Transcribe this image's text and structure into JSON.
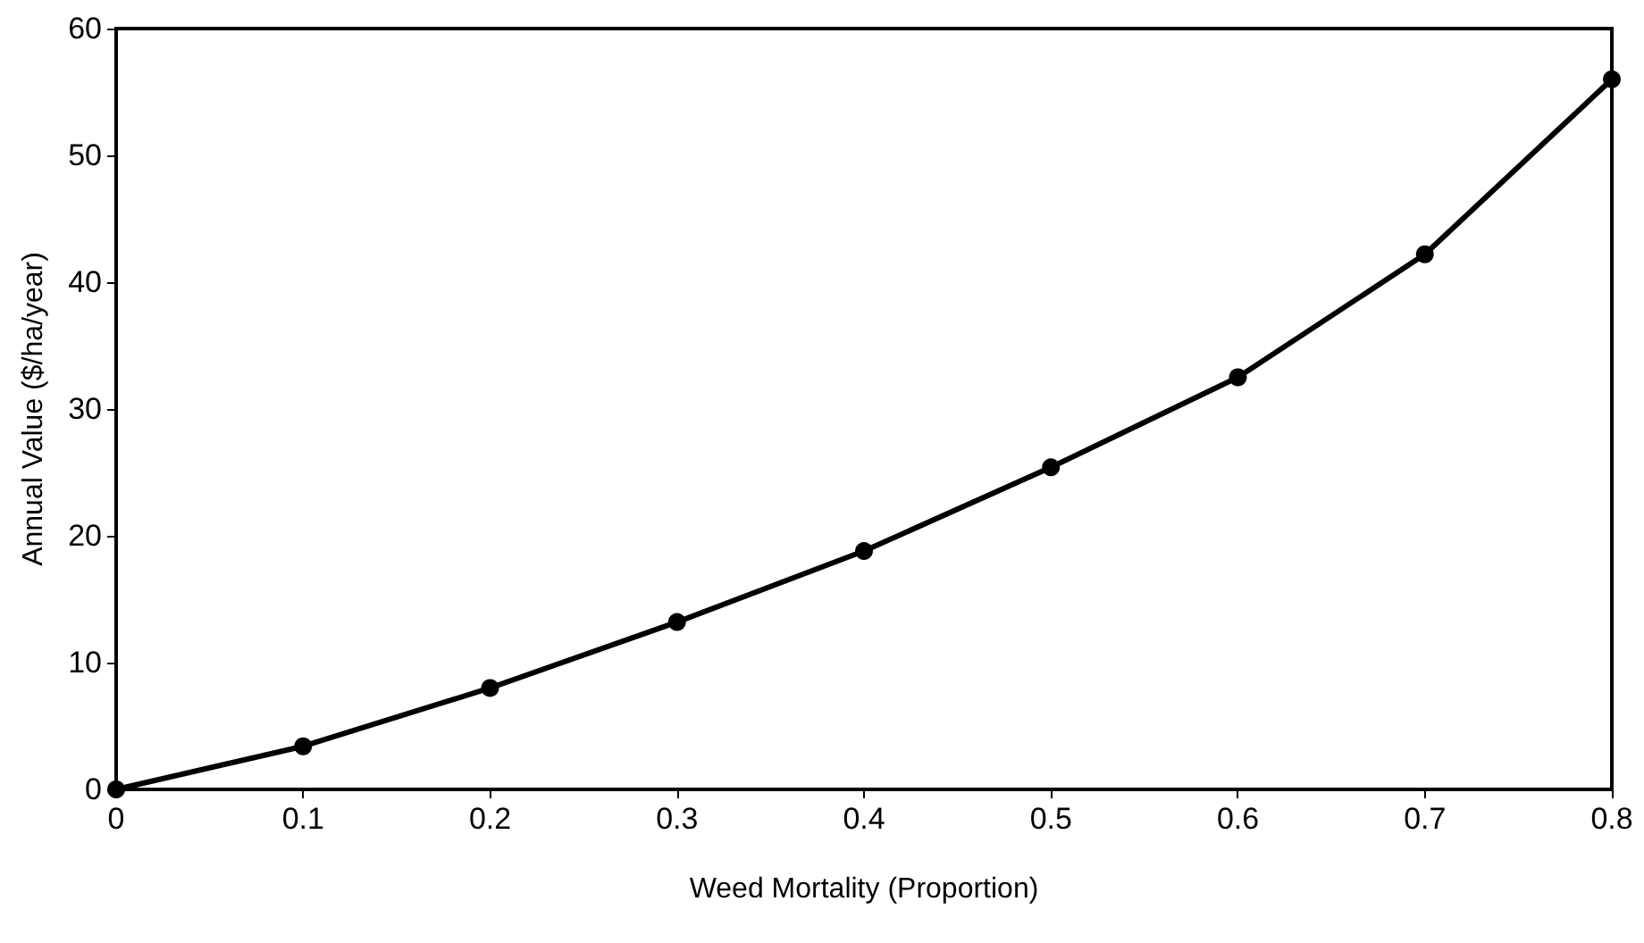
{
  "chart_data": {
    "type": "line",
    "xlabel": "Weed Mortality (Proportion)",
    "ylabel": "Annual Value ($/ha/year)",
    "x": [
      0,
      0.1,
      0.2,
      0.3,
      0.4,
      0.5,
      0.6,
      0.7,
      0.8
    ],
    "series": [
      {
        "color": "#000000",
        "values": [
          0,
          3.4,
          8.0,
          13.2,
          18.8,
          25.4,
          32.5,
          42.2,
          56
        ]
      }
    ],
    "xlim": [
      0,
      0.8
    ],
    "xticks": [
      0,
      0.1,
      0.2,
      0.3,
      0.4,
      0.5,
      0.6,
      0.7,
      0.8
    ],
    "ylim": [
      0,
      60
    ],
    "yticks": [
      0,
      10,
      20,
      30,
      40,
      50,
      60
    ],
    "grid": false,
    "marker": "circle",
    "line_style": "solid"
  }
}
